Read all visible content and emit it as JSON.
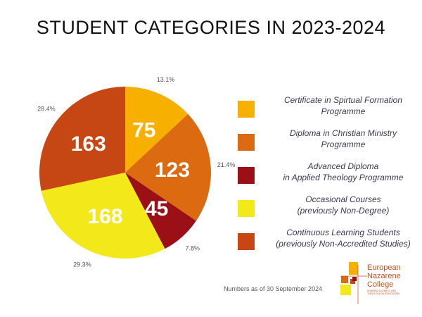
{
  "title": "STUDENT CATEGORIES IN 2023-2024",
  "chart_data": {
    "type": "pie",
    "title": "STUDENT CATEGORIES IN 2023-2024",
    "slices": [
      {
        "label": "Certificate in Spirtual Formation Programme",
        "legend_lines": [
          "Certificate in Spirtual Formation",
          "Programme"
        ],
        "value": 75,
        "percent": "13.1%",
        "color": "#f7b000"
      },
      {
        "label": "Diploma in Christian Ministry Programme",
        "legend_lines": [
          "Diploma in Christian Ministry",
          "Programme"
        ],
        "value": 123,
        "percent": "21.4%",
        "color": "#dc6a10"
      },
      {
        "label": "Advanced Diploma in Applied Theology Programme",
        "legend_lines": [
          "Advanced Diploma",
          "in Applied Theology Programme"
        ],
        "value": 45,
        "percent": "7.8%",
        "color": "#9a1016"
      },
      {
        "label": "Occasional Courses (previously Non-Degree)",
        "legend_lines": [
          "Occasional Courses",
          "(previously Non-Degree)"
        ],
        "value": 168,
        "percent": "29.3%",
        "color": "#f2e81a"
      },
      {
        "label": "Continuous Learning Students (previously Non-Accredited Studies)",
        "legend_lines": [
          "Continuous Learning Students",
          "(previously Non-Accredited Studies)"
        ],
        "value": 163,
        "percent": "28.4%",
        "color": "#c64714"
      }
    ],
    "start_angle": "12 o'clock",
    "direction": "clockwise",
    "legend_position": "right"
  },
  "footnote": "Numbers as of 30 September 2024",
  "logo": {
    "name_lines": [
      "European",
      "Nazarene",
      "College"
    ],
    "tagline": "SHAPING A CHRIST-LIKE THEOLOGICAL EDUCATION",
    "colors": [
      "#f7b000",
      "#dc6a10",
      "#c64714",
      "#f2e81a",
      "#9a1016"
    ]
  }
}
